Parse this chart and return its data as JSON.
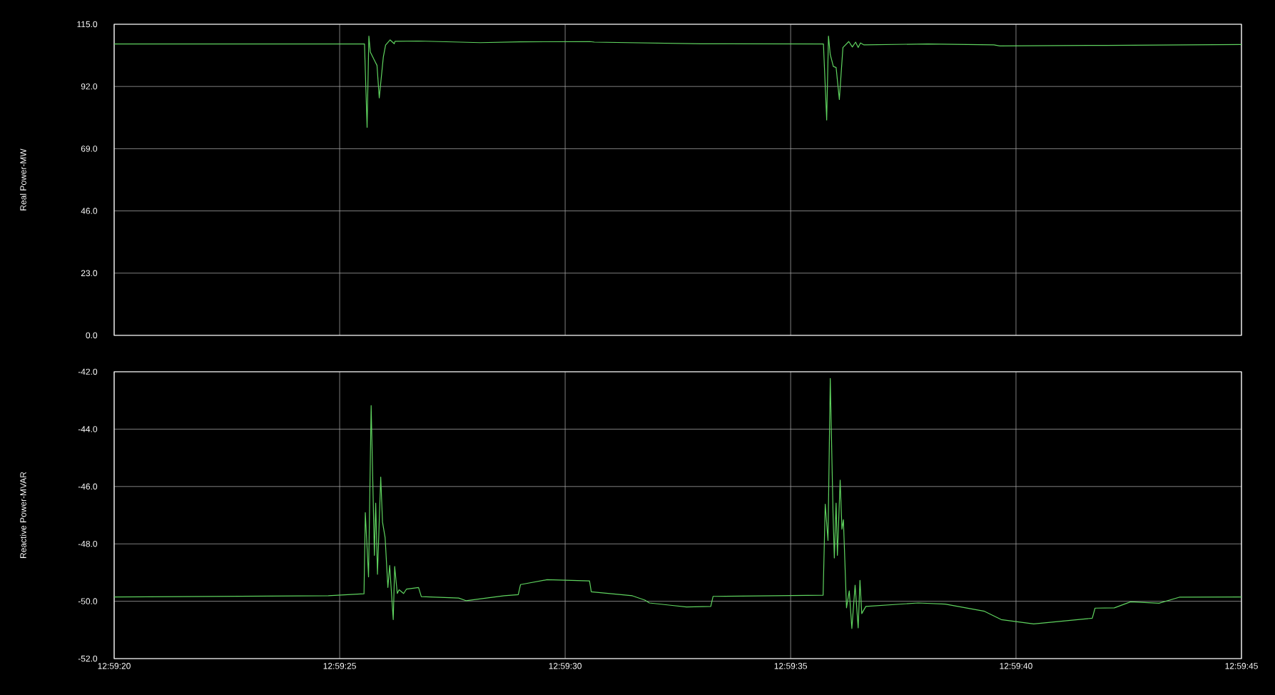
{
  "chart_data": [
    {
      "type": "line",
      "ylabel": "Real Power-MW",
      "xlim": [
        12.988889,
        12.995833
      ],
      "ylim": [
        0,
        115
      ],
      "xticks": [
        {
          "value": 12.988889,
          "label": null
        },
        {
          "value": 12.990278,
          "label": null
        },
        {
          "value": 12.991667,
          "label": null
        },
        {
          "value": 12.993056,
          "label": null
        },
        {
          "value": 12.994444,
          "label": null
        },
        {
          "value": 12.995833,
          "label": null
        }
      ],
      "yticks": [
        {
          "value": 0,
          "label": "0.0"
        },
        {
          "value": 23,
          "label": "23.0"
        },
        {
          "value": 46,
          "label": "46.0"
        },
        {
          "value": 69,
          "label": "69.0"
        },
        {
          "value": 92,
          "label": "92.0"
        },
        {
          "value": 115,
          "label": "115.0"
        }
      ],
      "grid": true,
      "tick_labels": "y",
      "series": [
        {
          "color": "#5fd35f",
          "x": [
            12.988889,
            12.990431,
            12.990447,
            12.990458,
            12.990467,
            12.990497,
            12.990508,
            12.990522,
            12.990547,
            12.990561,
            12.990589,
            12.990614,
            12.990619,
            12.990764,
            12.991144,
            12.991389,
            12.991819,
            12.991847,
            12.9925,
            12.993258,
            12.993278,
            12.993289,
            12.9933,
            12.993319,
            12.993336,
            12.993356,
            12.993378,
            12.993414,
            12.993436,
            12.993456,
            12.993472,
            12.993486,
            12.993506,
            12.9939,
            12.994308,
            12.994344,
            12.995,
            12.995833
          ],
          "values": [
            107.7,
            107.7,
            76.9,
            110.6,
            104.7,
            101.1,
            99.8,
            87.8,
            102.9,
            107.3,
            109.2,
            107.8,
            108.7,
            108.8,
            108.2,
            108.5,
            108.6,
            108.4,
            107.8,
            107.7,
            79.6,
            110.6,
            103.8,
            99.4,
            99.0,
            87.2,
            106.4,
            108.6,
            106.6,
            108.4,
            106.4,
            108.1,
            107.4,
            107.7,
            107.4,
            107.0,
            107.2,
            107.5
          ]
        }
      ]
    },
    {
      "type": "line",
      "ylabel": "Reactive Power-MVAR",
      "xlim": [
        12.988889,
        12.995833
      ],
      "ylim": [
        -52,
        -42
      ],
      "xticks": [
        {
          "value": 12.988889,
          "label": "12:59:20"
        },
        {
          "value": 12.990278,
          "label": "12:59:25"
        },
        {
          "value": 12.991667,
          "label": "12:59:30"
        },
        {
          "value": 12.993056,
          "label": "12:59:35"
        },
        {
          "value": 12.994444,
          "label": "12:59:40"
        },
        {
          "value": 12.995833,
          "label": "12:59:45"
        }
      ],
      "yticks": [
        {
          "value": -52,
          "label": "-52.0"
        },
        {
          "value": -50,
          "label": "-50.0"
        },
        {
          "value": -48,
          "label": "-48.0"
        },
        {
          "value": -46,
          "label": "-46.0"
        },
        {
          "value": -44,
          "label": "-44.0"
        },
        {
          "value": -42,
          "label": "-42.0"
        }
      ],
      "grid": true,
      "series": [
        {
          "color": "#5fd35f",
          "x": [
            12.988889,
            12.990208,
            12.990428,
            12.990436,
            12.990456,
            12.990472,
            12.990492,
            12.9905,
            12.990511,
            12.990531,
            12.990542,
            12.990558,
            12.990575,
            12.990586,
            12.990608,
            12.990617,
            12.990633,
            12.990644,
            12.990672,
            12.990689,
            12.990764,
            12.990781,
            12.991011,
            12.991056,
            12.991292,
            12.991378,
            12.991392,
            12.991556,
            12.991817,
            12.991828,
            12.992081,
            12.992158,
            12.992186,
            12.992317,
            12.992414,
            12.992564,
            12.992578,
            12.992961,
            12.993256,
            12.993269,
            12.993286,
            12.9933,
            12.993317,
            12.993325,
            12.993336,
            12.993344,
            12.993361,
            12.993372,
            12.993381,
            12.9934,
            12.993417,
            12.993433,
            12.993453,
            12.993472,
            12.993483,
            12.993494,
            12.993519,
            12.993842,
            12.994008,
            12.99425,
            12.994353,
            12.994553,
            12.994914,
            12.994931,
            12.99505,
            12.99515,
            12.995325,
            12.99545,
            12.995833
          ],
          "values": [
            -49.85,
            -49.81,
            -49.74,
            -46.91,
            -49.15,
            -43.18,
            -48.4,
            -46.58,
            -49.06,
            -45.67,
            -47.24,
            -47.78,
            -49.52,
            -48.75,
            -50.64,
            -48.79,
            -49.73,
            -49.6,
            -49.73,
            -49.58,
            -49.52,
            -49.84,
            -49.89,
            -49.98,
            -49.81,
            -49.77,
            -49.42,
            -49.25,
            -49.29,
            -49.67,
            -49.81,
            -49.96,
            -50.06,
            -50.14,
            -50.2,
            -50.18,
            -49.83,
            -49.81,
            -49.79,
            -46.62,
            -47.88,
            -42.23,
            -46.91,
            -48.49,
            -46.58,
            -48.4,
            -45.78,
            -47.49,
            -47.16,
            -50.23,
            -49.64,
            -50.95,
            -49.44,
            -50.93,
            -49.27,
            -50.43,
            -50.18,
            -50.06,
            -50.1,
            -50.35,
            -50.64,
            -50.79,
            -50.59,
            -50.24,
            -50.23,
            -50.02,
            -50.07,
            -49.86,
            -49.85
          ]
        }
      ]
    }
  ]
}
